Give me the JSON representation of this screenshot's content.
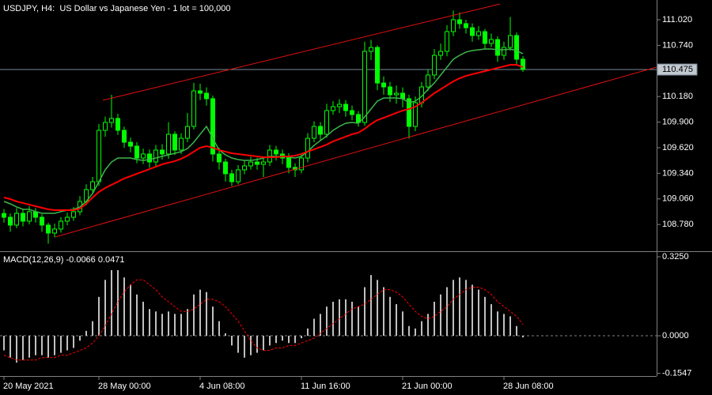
{
  "chart_data": [
    {
      "type": "ohlc",
      "title": "USDJPY, H4:  US Dollar vs Japanese Yen - 1 lot = 100,000",
      "categories": [
        "20 May 2021",
        null,
        null,
        null,
        null,
        null,
        null,
        null,
        null,
        null,
        null,
        null,
        null,
        null,
        null,
        "28 May 00:00",
        null,
        null,
        null,
        null,
        null,
        null,
        null,
        null,
        null,
        null,
        null,
        null,
        null,
        null,
        null,
        "4 Jun 08:00",
        null,
        null,
        null,
        null,
        null,
        null,
        null,
        null,
        null,
        null,
        null,
        null,
        null,
        null,
        null,
        "11 Jun 16:00",
        null,
        null,
        null,
        null,
        null,
        null,
        null,
        null,
        null,
        null,
        null,
        null,
        null,
        null,
        null,
        "21 Jun 00:00",
        null,
        null,
        null,
        null,
        null,
        null,
        null,
        null,
        null,
        null,
        null,
        null,
        null,
        null,
        null,
        "28 Jun 08:00",
        null,
        null,
        null
      ],
      "open": [
        108.9,
        108.859,
        108.773,
        108.902,
        108.816,
        108.92,
        108.859,
        108.773,
        108.686,
        108.73,
        108.816,
        108.859,
        108.92,
        109.032,
        109.162,
        109.248,
        109.81,
        109.896,
        109.94,
        109.81,
        109.68,
        109.637,
        109.507,
        109.551,
        109.464,
        109.594,
        109.551,
        109.767,
        109.594,
        109.723,
        109.853,
        110.242,
        110.216,
        110.156,
        109.551,
        109.464,
        109.335,
        109.248,
        109.378,
        109.421,
        109.464,
        109.438,
        109.464,
        109.594,
        109.551,
        109.507,
        109.404,
        109.378,
        109.507,
        109.723,
        109.853,
        109.767,
        110.026,
        110.069,
        110.095,
        110.026,
        109.983,
        109.896,
        110.674,
        110.717,
        110.328,
        110.285,
        110.199,
        110.216,
        110.156,
        109.853,
        110.112,
        110.285,
        110.415,
        110.631,
        110.674,
        110.89,
        111.02,
        110.977,
        110.933,
        110.847,
        110.89,
        110.761,
        110.803,
        110.631,
        110.717,
        110.847,
        110.588
      ],
      "high": [
        108.95,
        108.9,
        108.96,
        108.94,
        108.98,
        108.96,
        108.89,
        108.8,
        108.79,
        108.86,
        108.91,
        108.97,
        109.09,
        109.22,
        109.3,
        109.88,
        109.96,
        110.2,
        109.99,
        109.85,
        109.73,
        109.68,
        109.61,
        109.6,
        109.65,
        109.66,
        109.9,
        109.8,
        109.78,
        110.0,
        110.33,
        110.32,
        110.28,
        110.19,
        109.62,
        109.5,
        109.38,
        109.43,
        109.48,
        109.52,
        109.51,
        109.52,
        109.65,
        109.64,
        109.6,
        109.56,
        109.45,
        109.56,
        109.78,
        109.91,
        109.9,
        110.1,
        110.13,
        110.15,
        110.14,
        110.08,
        110.02,
        110.78,
        110.8,
        110.74,
        110.4,
        110.34,
        110.3,
        110.28,
        110.2,
        110.18,
        110.34,
        110.48,
        110.7,
        110.76,
        110.96,
        111.12,
        111.1,
        111.02,
        110.98,
        110.95,
        110.92,
        110.87,
        110.84,
        110.78,
        111.05,
        110.88,
        110.62
      ],
      "low": [
        108.8,
        108.7,
        108.74,
        108.76,
        108.78,
        108.8,
        108.7,
        108.57,
        108.64,
        108.69,
        108.77,
        108.82,
        108.88,
        108.99,
        109.11,
        109.2,
        109.74,
        109.84,
        109.76,
        109.62,
        109.57,
        109.45,
        109.44,
        109.4,
        109.42,
        109.49,
        109.5,
        109.54,
        109.55,
        109.68,
        109.82,
        110.14,
        110.08,
        109.47,
        109.38,
        109.25,
        109.2,
        109.22,
        109.33,
        109.38,
        109.38,
        109.3,
        109.42,
        109.48,
        109.44,
        109.34,
        109.3,
        109.34,
        109.46,
        109.68,
        109.7,
        109.73,
        109.98,
        110.0,
        109.96,
        109.92,
        109.85,
        109.86,
        110.58,
        110.25,
        110.2,
        110.12,
        110.1,
        110.06,
        109.72,
        109.8,
        110.06,
        110.24,
        110.37,
        110.58,
        110.62,
        110.84,
        110.92,
        110.87,
        110.78,
        110.8,
        110.7,
        110.72,
        110.56,
        110.58,
        110.68,
        110.52,
        110.45
      ],
      "close": [
        108.859,
        108.773,
        108.902,
        108.816,
        108.92,
        108.859,
        108.773,
        108.686,
        108.73,
        108.816,
        108.859,
        108.92,
        109.032,
        109.162,
        109.248,
        109.81,
        109.896,
        109.94,
        109.81,
        109.68,
        109.637,
        109.507,
        109.551,
        109.464,
        109.594,
        109.551,
        109.767,
        109.594,
        109.723,
        109.853,
        110.242,
        110.216,
        110.156,
        109.551,
        109.464,
        109.335,
        109.248,
        109.378,
        109.421,
        109.464,
        109.438,
        109.464,
        109.594,
        109.551,
        109.507,
        109.404,
        109.378,
        109.507,
        109.723,
        109.853,
        109.767,
        110.026,
        110.069,
        110.095,
        110.026,
        109.983,
        109.896,
        110.674,
        110.717,
        110.328,
        110.285,
        110.199,
        110.216,
        110.156,
        109.853,
        110.112,
        110.285,
        110.415,
        110.631,
        110.674,
        110.89,
        111.02,
        110.977,
        110.933,
        110.847,
        110.89,
        110.761,
        110.803,
        110.631,
        110.717,
        110.847,
        110.588,
        110.475
      ],
      "color": "#00ff00",
      "overlays": [
        {
          "color": "#3cb84a",
          "values": [
            109.032,
            109.006,
            108.972,
            108.946,
            108.946,
            108.92,
            108.902,
            108.902,
            108.902,
            108.92,
            108.937,
            108.946,
            108.972,
            109.032,
            109.118,
            109.248,
            109.378,
            109.464,
            109.507,
            109.507,
            109.507,
            109.49,
            109.481,
            109.49,
            109.507,
            109.525,
            109.542,
            109.559,
            109.577,
            109.611,
            109.68,
            109.767,
            109.853,
            109.723,
            109.594,
            109.542,
            109.507,
            109.49,
            109.481,
            109.481,
            109.49,
            109.507,
            109.525,
            109.525,
            109.525,
            109.516,
            109.507,
            109.525,
            109.577,
            109.646,
            109.698,
            109.749,
            109.81,
            109.853,
            109.888,
            109.896,
            109.888,
            109.957,
            110.043,
            110.13,
            110.164,
            110.164,
            110.164,
            110.156,
            110.112,
            110.13,
            110.182,
            110.259,
            110.328,
            110.415,
            110.501,
            110.588,
            110.631,
            110.666,
            110.683,
            110.691,
            110.7,
            110.7,
            110.691,
            110.691,
            110.7,
            110.683,
            110.648
          ]
        },
        {
          "color": "#ff0000",
          "values": [
            109.075,
            109.058,
            109.032,
            109.015,
            108.997,
            108.98,
            108.963,
            108.946,
            108.937,
            108.937,
            108.937,
            108.937,
            108.954,
            109.006,
            109.075,
            109.136,
            109.179,
            109.214,
            109.248,
            109.283,
            109.309,
            109.335,
            109.36,
            109.386,
            109.412,
            109.438,
            109.456,
            109.473,
            109.499,
            109.533,
            109.577,
            109.62,
            109.637,
            109.62,
            109.594,
            109.577,
            109.559,
            109.551,
            109.542,
            109.533,
            109.525,
            109.516,
            109.516,
            109.516,
            109.525,
            109.525,
            109.533,
            109.551,
            109.577,
            109.602,
            109.628,
            109.654,
            109.689,
            109.715,
            109.741,
            109.767,
            109.784,
            109.827,
            109.879,
            109.922,
            109.948,
            109.974,
            110.0,
            110.026,
            110.043,
            110.069,
            110.112,
            110.164,
            110.216,
            110.259,
            110.303,
            110.346,
            110.38,
            110.406,
            110.424,
            110.441,
            110.458,
            110.475,
            110.493,
            110.51,
            110.527,
            110.527,
            110.501
          ]
        }
      ],
      "trendlines": [
        {
          "color": "#e01010",
          "x": [
            15.6,
            78.4
          ],
          "y": [
            110.138,
            111.193
          ]
        },
        {
          "color": "#e01010",
          "x": [
            8.1,
            103.1
          ],
          "y": [
            108.643,
            110.501
          ]
        }
      ],
      "last_price": 110.475,
      "last_price_color": "#778899",
      "ylim": [
        108.496,
        111.236
      ],
      "yticks": [
        {
          "value": 111.02,
          "label": "111.020"
        },
        {
          "value": 110.74,
          "label": "110.740"
        },
        {
          "value": 110.18,
          "label": "110.180"
        },
        {
          "value": 109.9,
          "label": "109.900"
        },
        {
          "value": 109.62,
          "label": "109.620"
        },
        {
          "value": 109.34,
          "label": "109.340"
        },
        {
          "value": 109.06,
          "label": "109.060"
        },
        {
          "value": 108.78,
          "label": "108.780"
        }
      ]
    },
    {
      "type": "macd",
      "name": "MACD(12,26,9)",
      "histogram": {
        "color": "#c0c0c0",
        "values": [
          -0.06,
          -0.09,
          -0.11,
          -0.1,
          -0.09,
          -0.08,
          -0.08,
          -0.09,
          -0.08,
          -0.07,
          -0.06,
          -0.05,
          -0.02,
          0.02,
          0.06,
          0.16,
          0.23,
          0.27,
          0.27,
          0.24,
          0.21,
          0.17,
          0.14,
          0.11,
          0.1,
          0.09,
          0.1,
          0.09,
          0.09,
          0.11,
          0.17,
          0.19,
          0.18,
          0.12,
          0.06,
          0.01,
          -0.04,
          -0.07,
          -0.09,
          -0.08,
          -0.07,
          -0.06,
          -0.04,
          -0.03,
          -0.02,
          -0.03,
          -0.03,
          -0.01,
          0.03,
          0.07,
          0.09,
          0.12,
          0.14,
          0.15,
          0.15,
          0.14,
          0.12,
          0.2,
          0.25,
          0.23,
          0.2,
          0.16,
          0.13,
          0.1,
          0.04,
          0.03,
          0.06,
          0.09,
          0.14,
          0.17,
          0.2,
          0.23,
          0.24,
          0.23,
          0.21,
          0.19,
          0.16,
          0.13,
          0.1,
          0.09,
          0.08,
          0.04,
          -0.0066
        ]
      },
      "signal": {
        "color": "#ff0000",
        "values": [
          -0.08,
          -0.09,
          -0.1,
          -0.1,
          -0.1,
          -0.1,
          -0.09,
          -0.09,
          -0.09,
          -0.08,
          -0.08,
          -0.07,
          -0.06,
          -0.05,
          -0.03,
          0.0,
          0.04,
          0.09,
          0.14,
          0.18,
          0.21,
          0.23,
          0.23,
          0.21,
          0.19,
          0.16,
          0.14,
          0.12,
          0.1,
          0.1,
          0.11,
          0.13,
          0.15,
          0.15,
          0.14,
          0.12,
          0.09,
          0.06,
          0.02,
          -0.02,
          -0.05,
          -0.06,
          -0.06,
          -0.05,
          -0.05,
          -0.04,
          -0.04,
          -0.03,
          -0.02,
          -0.01,
          0.01,
          0.03,
          0.05,
          0.07,
          0.09,
          0.11,
          0.12,
          0.13,
          0.15,
          0.17,
          0.19,
          0.19,
          0.18,
          0.16,
          0.13,
          0.1,
          0.08,
          0.07,
          0.08,
          0.1,
          0.12,
          0.15,
          0.17,
          0.19,
          0.2,
          0.2,
          0.19,
          0.17,
          0.14,
          0.12,
          0.1,
          0.08,
          0.0471
        ]
      },
      "ylim": [
        -0.1625,
        0.348
      ],
      "yticks": [
        {
          "value": 0.325,
          "label": "0.3250"
        },
        {
          "value": 0,
          "label": "0.0000"
        },
        -0.1547
      ]
    }
  ]
}
